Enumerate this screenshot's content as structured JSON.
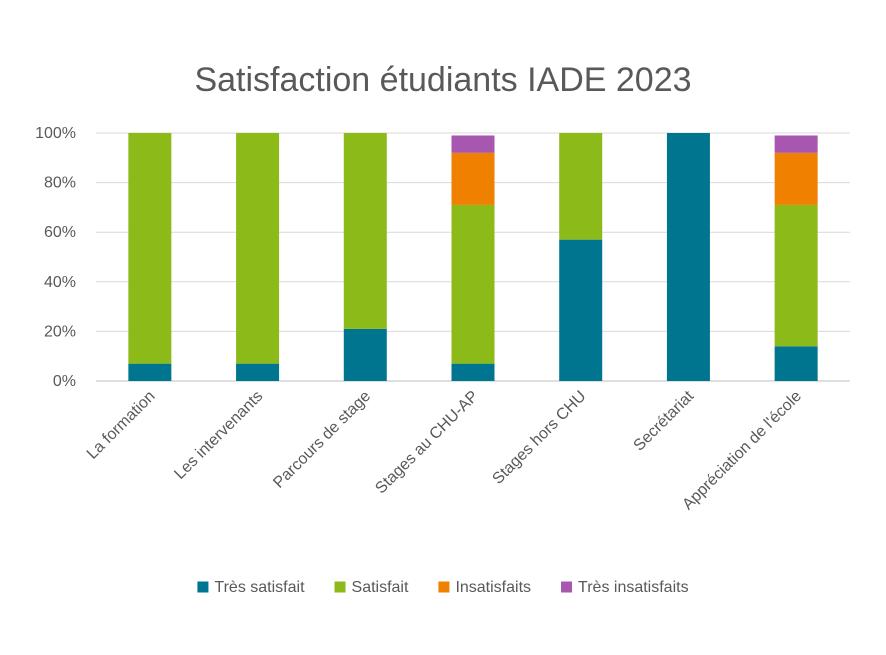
{
  "chart_data": {
    "type": "bar",
    "stacked": true,
    "percent_stacked": true,
    "title": "Satisfaction étudiants IADE 2023",
    "categories": [
      "La formation",
      "Les intervenants",
      "Parcours de stage",
      "Stages au CHU-AP",
      "Stages hors CHU",
      "Secrétariat",
      "Appréciation de l'école"
    ],
    "series": [
      {
        "name": "Très satisfait",
        "color": "#00758F",
        "values": [
          7,
          7,
          21,
          7,
          57,
          100,
          14
        ]
      },
      {
        "name": "Satisfait",
        "color": "#8CBA19",
        "values": [
          93,
          93,
          79,
          64,
          43,
          0,
          57
        ]
      },
      {
        "name": "Insatisfaits",
        "color": "#F08100",
        "values": [
          0,
          0,
          0,
          21,
          0,
          0,
          21
        ]
      },
      {
        "name": "Très insatisfaits",
        "color": "#A857B0",
        "values": [
          0,
          0,
          0,
          7,
          0,
          0,
          7
        ]
      }
    ],
    "ylim": [
      0,
      100
    ],
    "yticks": [
      "0%",
      "20%",
      "40%",
      "60%",
      "80%",
      "100%"
    ],
    "grid": true,
    "legend_position": "bottom"
  }
}
